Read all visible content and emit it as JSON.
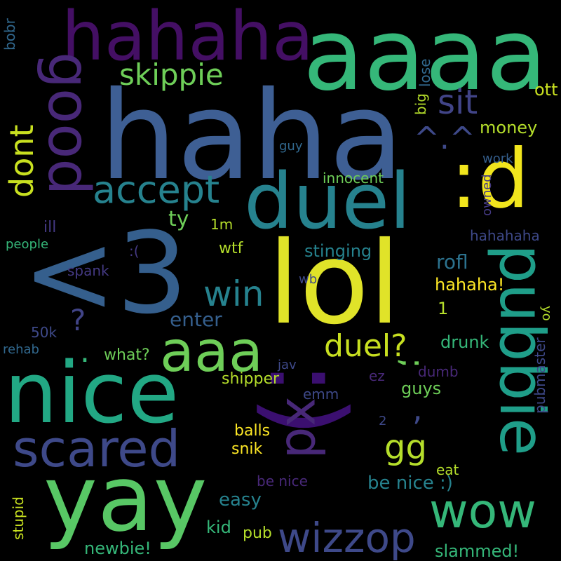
{
  "palette": {
    "background": "#000000",
    "colors": [
      "#440154",
      "#482878",
      "#3e4989",
      "#31688e",
      "#26828e",
      "#1f9e89",
      "#35b779",
      "#6ece58",
      "#b5de2b",
      "#fde725"
    ]
  },
  "words": {
    "w_haha": "haha",
    "w_lt3": "<3",
    "w_lol": "lol",
    "w_aaaa": "aaaa",
    "w_hahaha": "hahaha",
    "w_nice": "nice",
    "w_yay": "yay",
    "w_duel": "duel",
    "w_colon_d": ":d",
    "w_colon_paren": ":)",
    "w_pubbie": "pubbie",
    "w_good": "good",
    "w_aaa": "aaa",
    "w_scared": "scared",
    "w_xd": "xd",
    "w_wow": "wow",
    "w_wizzop": "wizzop",
    "w_accept": "accept",
    "w_skippie": "skippie",
    "w_sit": "sit",
    "w_dont": "dont",
    "w_win": "win",
    "w_duel_q": "duel?",
    "w_gg": "gg",
    "w_caret": "^.^",
    "w_semicolon": ";",
    "w_question": "?",
    "w_dot": ".",
    "w_comma": ",",
    "w_ott": "ott",
    "w_money": "money",
    "w_big": "big",
    "w_lose": "lose",
    "w_bobr": "bobr",
    "w_guy": "guy",
    "w_innocent": "innocent",
    "w_work": "work",
    "w_owned": "owned",
    "w_ty": "ty",
    "w_1m": "1m",
    "w_ill": "ill",
    "w_people": "people",
    "w_sad": ":(",
    "w_wtf": "wtf",
    "w_stinging": "stinging",
    "w_hahahaha": "hahahaha",
    "w_rofl": "rofl",
    "w_spank": "spank",
    "w_wb": "wb",
    "w_hahaha_ex": "hahaha!",
    "w_1": "1",
    "w_yo": "yo",
    "w_enter": "enter",
    "w_50k": "50k",
    "w_rehab": "rehab",
    "w_drunk": "drunk",
    "w_what": "what?",
    "w_jav": "jav",
    "w_ez": "ez",
    "w_dumb": "dumb",
    "w_pubmaster": "pubmaster",
    "w_shipper": "shipper",
    "w_guys": "guys",
    "w_emm": "emm",
    "w_2": "2",
    "w_balls": "balls",
    "w_snik": "snik",
    "w_eat": "eat",
    "w_be_nice": "be nice",
    "w_be_nice_smile": "be nice :)",
    "w_easy": "easy",
    "w_stupid": "stupid",
    "w_kid": "kid",
    "w_pub": "pub",
    "w_newbie": "newbie!",
    "w_slammed": "slammed!"
  }
}
